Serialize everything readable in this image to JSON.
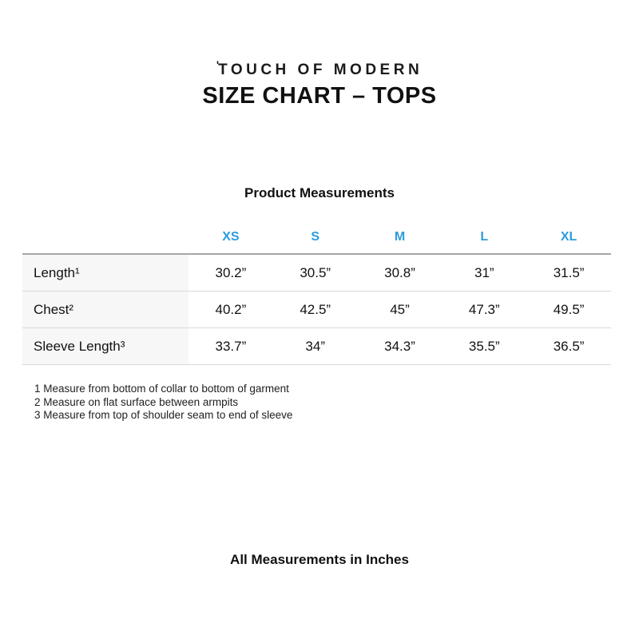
{
  "header": {
    "logo_mark": "'",
    "logo_text": "TOUCH OF MODERN",
    "title": "SIZE CHART – TOPS"
  },
  "table": {
    "caption": "Product Measurements",
    "accent_color": "#2D9CDB",
    "label_column_bg": "#f7f7f7",
    "columns": [
      "XS",
      "S",
      "M",
      "L",
      "XL"
    ],
    "rows": [
      {
        "label": "Length¹",
        "values": [
          "30.2”",
          "30.5”",
          "30.8”",
          "31”",
          "31.5”"
        ]
      },
      {
        "label": "Chest²",
        "values": [
          "40.2”",
          "42.5”",
          "45”",
          "47.3”",
          "49.5”"
        ]
      },
      {
        "label": "Sleeve Length³",
        "values": [
          "33.7”",
          "34”",
          "34.3”",
          "35.5”",
          "36.5”"
        ]
      }
    ]
  },
  "footnotes": [
    "1 Measure from bottom of collar to bottom of garment",
    "2 Measure on flat surface between armpits",
    "3 Measure from top of shoulder seam to end of sleeve"
  ],
  "footer": {
    "note": "All Measurements in Inches"
  }
}
